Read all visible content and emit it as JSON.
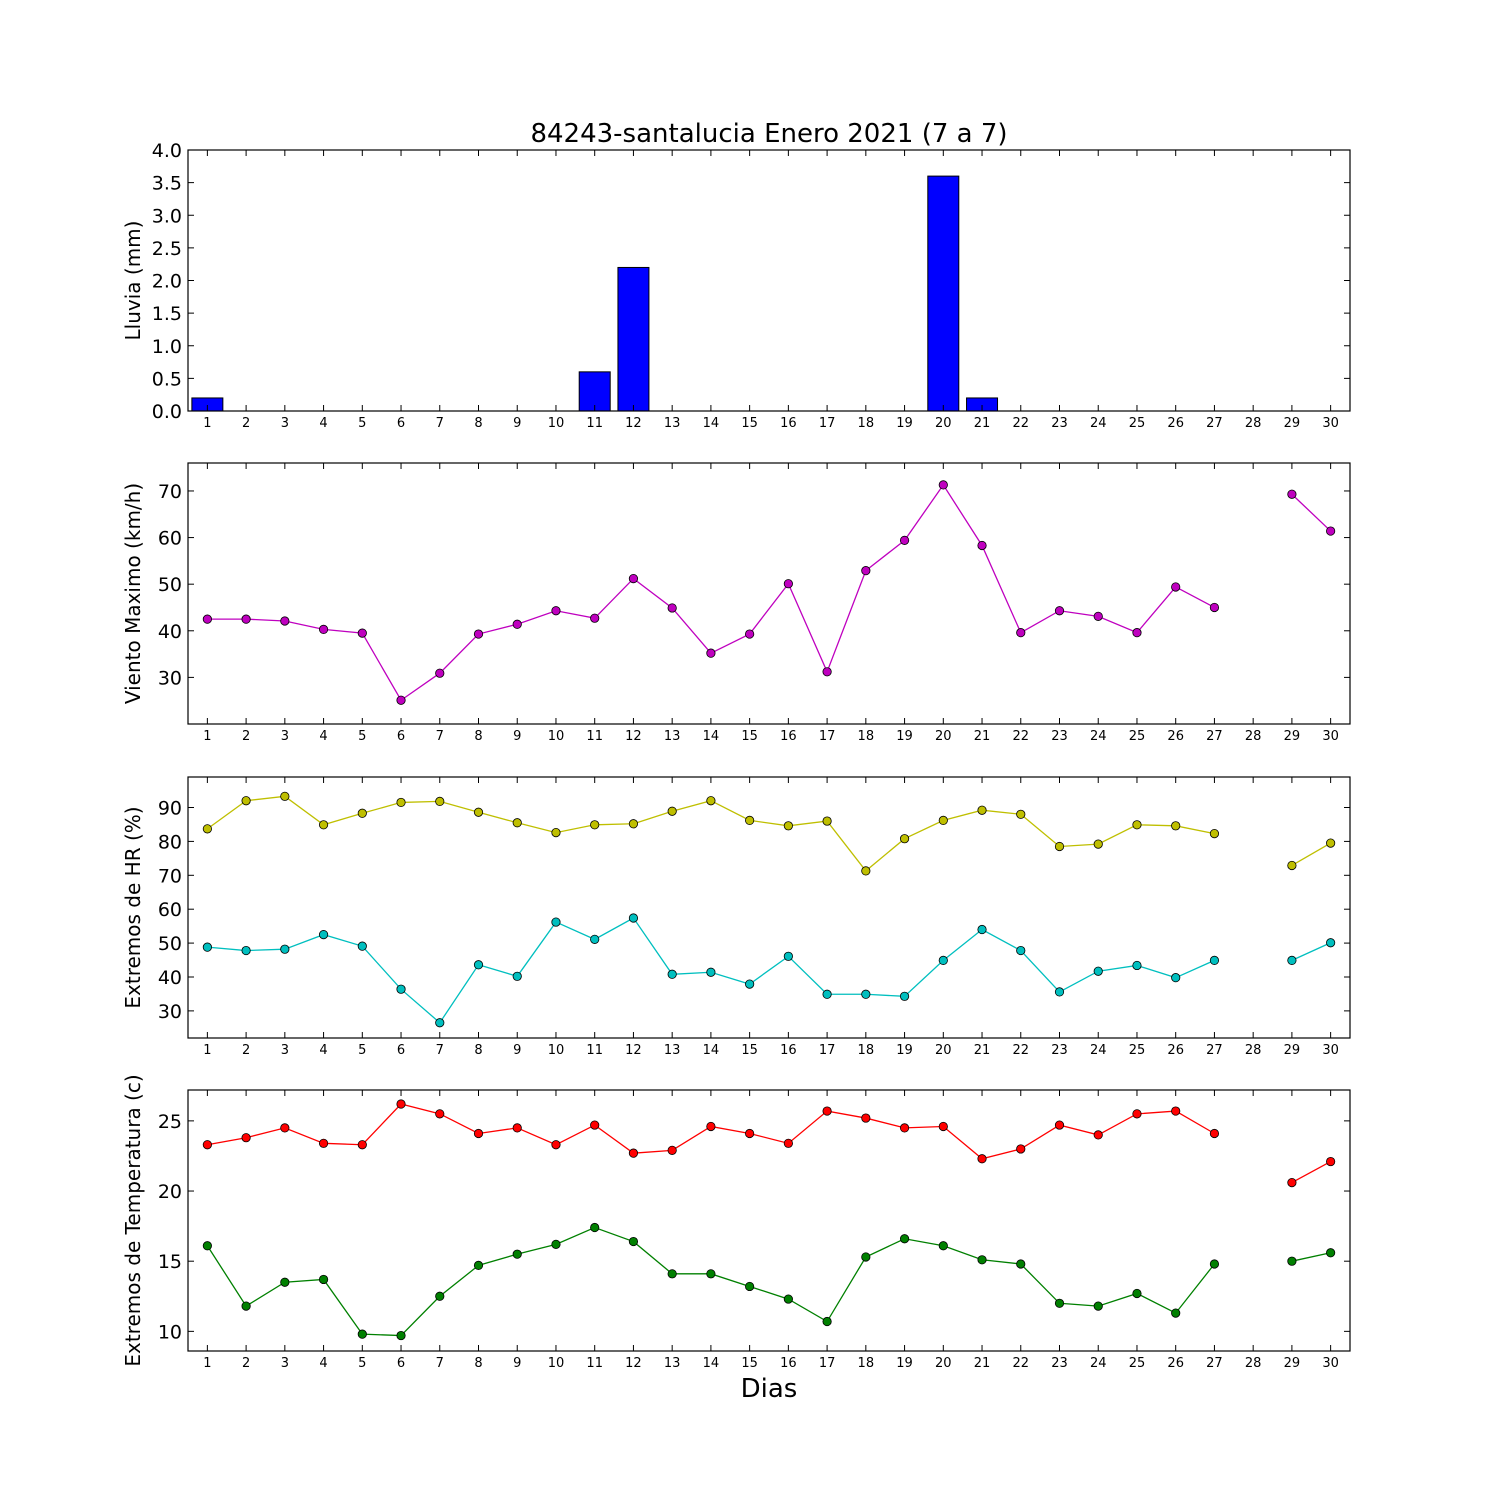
{
  "title": "84243-santalucia Enero 2021  (7 a 7)",
  "xlabel": "Dias",
  "chart_data": [
    {
      "type": "bar",
      "ylabel": "Lluvia (mm)",
      "ylim": [
        0,
        4.0
      ],
      "yticks": [
        "0.0",
        "0.5",
        "1.0",
        "1.5",
        "2.0",
        "2.5",
        "3.0",
        "3.5",
        "4.0"
      ],
      "ytick_values": [
        0,
        0.5,
        1,
        1.5,
        2,
        2.5,
        3,
        3.5,
        4
      ],
      "categories": [
        1,
        2,
        3,
        4,
        5,
        6,
        7,
        8,
        9,
        10,
        11,
        12,
        13,
        14,
        15,
        16,
        17,
        18,
        19,
        20,
        21,
        22,
        23,
        24,
        25,
        26,
        27,
        28,
        29,
        30
      ],
      "series": [
        {
          "color": "#0000ff",
          "values": [
            0.2,
            0,
            0,
            0,
            0,
            0,
            0,
            0,
            0,
            0,
            0.6,
            2.2,
            0,
            0,
            0,
            0,
            0,
            0,
            0,
            3.6,
            0.2,
            0,
            0,
            0,
            0,
            0,
            0,
            0,
            0,
            0
          ]
        }
      ]
    },
    {
      "type": "line",
      "ylabel": "Viento Maximo (km/h)",
      "ylim": [
        20,
        76
      ],
      "yticks": [
        "30",
        "40",
        "50",
        "60",
        "70"
      ],
      "ytick_values": [
        30,
        40,
        50,
        60,
        70
      ],
      "categories": [
        1,
        2,
        3,
        4,
        5,
        6,
        7,
        8,
        9,
        10,
        11,
        12,
        13,
        14,
        15,
        16,
        17,
        18,
        19,
        20,
        21,
        22,
        23,
        24,
        25,
        26,
        27,
        28,
        29,
        30
      ],
      "series": [
        {
          "color": "#bf00bf",
          "values": [
            42.5,
            42.5,
            42.1,
            40.3,
            39.5,
            25.1,
            30.9,
            39.3,
            41.4,
            44.3,
            42.7,
            51.2,
            44.9,
            35.2,
            39.3,
            50.1,
            31.2,
            52.9,
            59.4,
            71.3,
            58.3,
            39.6,
            44.3,
            43.1,
            39.6,
            49.4,
            45.0,
            null,
            69.3,
            61.4
          ]
        }
      ]
    },
    {
      "type": "line",
      "ylabel": "Extremos de HR (%)",
      "ylim": [
        22,
        99
      ],
      "yticks": [
        "30",
        "40",
        "50",
        "60",
        "70",
        "80",
        "90"
      ],
      "ytick_values": [
        30,
        40,
        50,
        60,
        70,
        80,
        90
      ],
      "categories": [
        1,
        2,
        3,
        4,
        5,
        6,
        7,
        8,
        9,
        10,
        11,
        12,
        13,
        14,
        15,
        16,
        17,
        18,
        19,
        20,
        21,
        22,
        23,
        24,
        25,
        26,
        27,
        28,
        29,
        30
      ],
      "series": [
        {
          "color": "#bfbf00",
          "values": [
            83.7,
            92.0,
            93.3,
            84.9,
            88.3,
            91.5,
            91.8,
            88.6,
            85.5,
            82.6,
            84.9,
            85.2,
            88.9,
            92.0,
            86.2,
            84.6,
            86.0,
            71.3,
            80.8,
            86.2,
            89.2,
            88.0,
            78.5,
            79.2,
            84.9,
            84.6,
            82.3,
            null,
            72.9,
            79.5
          ]
        },
        {
          "color": "#00bfbf",
          "values": [
            48.8,
            47.8,
            48.2,
            52.5,
            49.1,
            36.4,
            26.5,
            43.6,
            40.2,
            56.2,
            51.1,
            57.4,
            40.8,
            41.4,
            37.9,
            46.1,
            34.9,
            34.9,
            34.3,
            44.9,
            54.0,
            47.8,
            35.6,
            41.7,
            43.4,
            39.8,
            44.9,
            null,
            44.9,
            50.1
          ]
        }
      ]
    },
    {
      "type": "line",
      "ylabel": "Extremos de Temperatura (c)",
      "ylim": [
        8.6,
        27.2
      ],
      "yticks": [
        "10",
        "15",
        "20",
        "25"
      ],
      "ytick_values": [
        10,
        15,
        20,
        25
      ],
      "categories": [
        1,
        2,
        3,
        4,
        5,
        6,
        7,
        8,
        9,
        10,
        11,
        12,
        13,
        14,
        15,
        16,
        17,
        18,
        19,
        20,
        21,
        22,
        23,
        24,
        25,
        26,
        27,
        28,
        29,
        30
      ],
      "series": [
        {
          "color": "#ff0000",
          "values": [
            23.3,
            23.8,
            24.5,
            23.4,
            23.3,
            26.2,
            25.5,
            24.1,
            24.5,
            23.3,
            24.7,
            22.7,
            22.9,
            24.6,
            24.1,
            23.4,
            25.7,
            25.2,
            24.5,
            24.6,
            22.3,
            23.0,
            24.7,
            24.0,
            25.5,
            25.7,
            24.1,
            null,
            20.6,
            22.1
          ]
        },
        {
          "color": "#008000",
          "values": [
            16.1,
            11.8,
            13.5,
            13.7,
            9.8,
            9.7,
            12.5,
            14.7,
            15.5,
            16.2,
            17.4,
            16.4,
            14.1,
            14.1,
            13.2,
            12.3,
            10.7,
            15.3,
            16.6,
            16.1,
            15.1,
            14.8,
            12.0,
            11.8,
            12.7,
            11.3,
            14.8,
            null,
            15.0,
            15.6
          ]
        }
      ]
    }
  ]
}
